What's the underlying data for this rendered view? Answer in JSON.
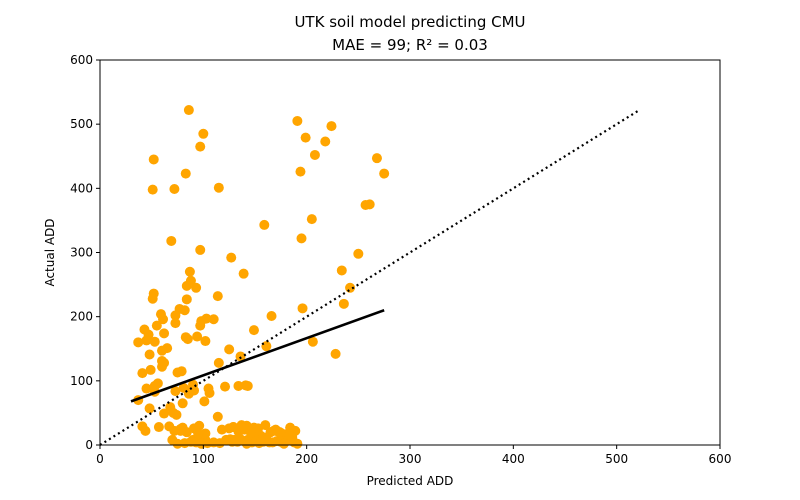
{
  "chart_data": {
    "type": "scatter",
    "title": "UTK soil model predicting CMU",
    "subtitle": "MAE = 99; R² = 0.03",
    "xlabel": "Predicted ADD",
    "ylabel": "Actual ADD",
    "xlim": [
      0,
      600
    ],
    "ylim": [
      0,
      600
    ],
    "xticks": [
      0,
      100,
      200,
      300,
      400,
      500,
      600
    ],
    "yticks": [
      0,
      100,
      200,
      300,
      400,
      500,
      600
    ],
    "grid": false,
    "colors": {
      "points": "#FFA500",
      "lines": "#000000"
    },
    "series": [
      {
        "type": "scatter",
        "x": [
          86,
          191,
          100,
          97,
          52,
          83,
          115,
          51,
          72,
          194,
          199,
          224,
          218,
          208,
          268,
          275,
          257,
          261,
          195,
          205,
          159,
          69,
          97,
          127,
          196,
          250,
          139,
          87,
          88,
          59,
          62,
          242,
          234,
          102,
          114,
          84,
          93,
          77,
          103,
          166,
          98,
          52,
          84,
          82,
          61,
          83,
          51,
          73,
          115,
          60,
          79,
          134,
          121,
          141,
          161,
          149,
          236,
          97,
          228,
          206,
          65,
          85,
          94,
          136,
          106,
          143,
          37,
          48,
          53,
          73,
          45,
          53,
          41,
          56,
          62,
          90,
          49,
          75,
          81,
          105,
          101,
          43,
          60,
          48,
          110,
          125,
          37,
          45,
          47,
          53,
          55,
          73,
          60,
          91,
          86,
          80,
          67,
          68,
          80,
          87,
          62,
          71,
          74,
          125,
          99,
          90,
          122,
          102,
          97,
          126,
          114,
          137,
          149,
          172,
          181,
          186,
          135,
          138,
          142,
          145,
          150,
          155,
          158,
          165,
          170,
          176,
          184,
          189,
          130,
          133,
          136,
          139,
          143,
          147,
          151,
          154,
          158,
          162,
          167,
          171,
          175,
          182,
          188,
          191,
          129,
          134,
          140,
          146,
          153,
          160,
          168,
          174,
          183,
          98,
          110,
          122,
          128,
          142,
          156,
          164,
          178,
          70,
          75,
          82,
          88,
          93,
          98,
          104,
          116,
          72,
          78,
          84,
          91,
          96,
          102,
          118,
          129,
          41,
          44,
          57,
          78,
          95
        ],
        "y": [
          522,
          505,
          485,
          465,
          445,
          423,
          401,
          398,
          399,
          426,
          479,
          497,
          473,
          452,
          447,
          423,
          374,
          375,
          322,
          352,
          343,
          318,
          304,
          292,
          213,
          298,
          267,
          270,
          256,
          204,
          174,
          245,
          272,
          162,
          232,
          248,
          245,
          212,
          197,
          201,
          193,
          236,
          227,
          210,
          196,
          168,
          228,
          202,
          128,
          122,
          115,
          92,
          91,
          93,
          154,
          179,
          220,
          186,
          142,
          161,
          151,
          165,
          169,
          138,
          81,
          92,
          70,
          57,
          83,
          84,
          88,
          92,
          112,
          96,
          128,
          94,
          117,
          113,
          89,
          88,
          68,
          180,
          147,
          141,
          196,
          149,
          160,
          163,
          172,
          161,
          186,
          190,
          131,
          85,
          80,
          27,
          29,
          59,
          65,
          84,
          49,
          50,
          47,
          26,
          14,
          8,
          8,
          8,
          10,
          9,
          44,
          31,
          27,
          21,
          17,
          12,
          22,
          24,
          30,
          26,
          18,
          15,
          12,
          20,
          24,
          18,
          27,
          22,
          8,
          5,
          9,
          6,
          8,
          4,
          6,
          3,
          5,
          7,
          4,
          6,
          5,
          8,
          4,
          2,
          28,
          21,
          24,
          19,
          26,
          31,
          22,
          20,
          15,
          3,
          4,
          7,
          5,
          2,
          5,
          4,
          2,
          8,
          2,
          3,
          5,
          4,
          2,
          3,
          3,
          22,
          25,
          20,
          26,
          30,
          18,
          24,
          28,
          29,
          22,
          28,
          22,
          18
        ]
      },
      {
        "type": "line",
        "style": "solid",
        "x": [
          30,
          275
        ],
        "y": [
          68,
          210
        ]
      },
      {
        "type": "line",
        "style": "dotted",
        "x": [
          0,
          522
        ],
        "y": [
          0,
          522
        ]
      }
    ]
  }
}
